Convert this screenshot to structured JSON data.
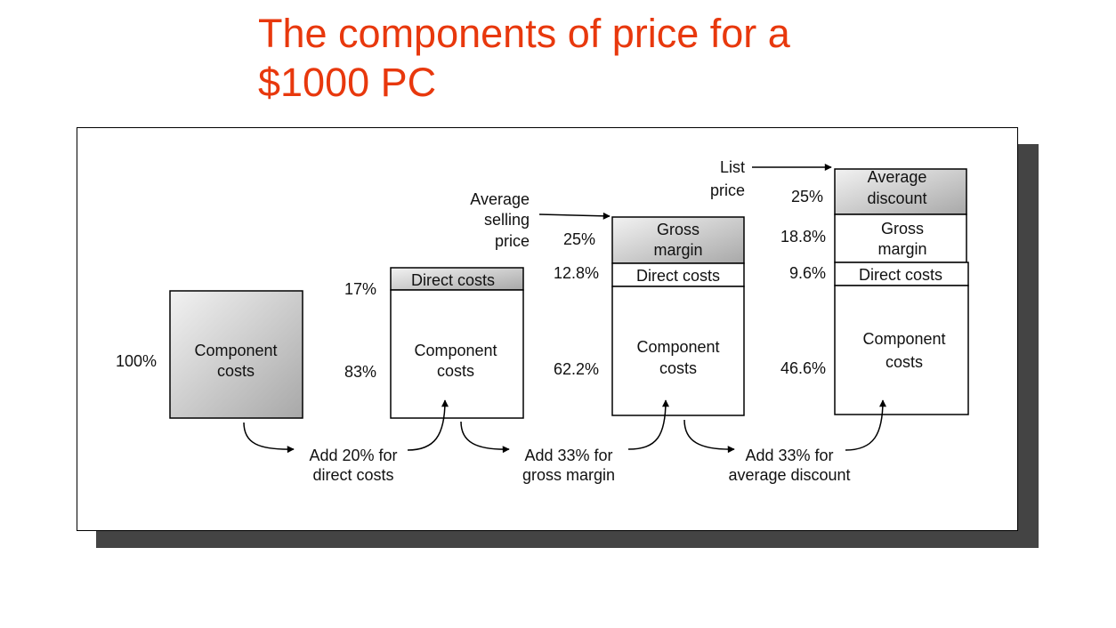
{
  "slide": {
    "title_line1": "The components of price for a",
    "title_line2": "$1000 PC",
    "title_color": "#e8380d"
  },
  "colors": {
    "shaded_fill_light": "#f2f2f2",
    "shaded_fill_dark": "#a8a8a8",
    "stroke": "#000000",
    "shadow": "#444444"
  },
  "diagram": {
    "stage1": {
      "percent": "100%",
      "component_line1": "Component",
      "component_line2": "costs"
    },
    "stage2": {
      "direct_percent": "17%",
      "direct_label": "Direct costs",
      "component_percent": "83%",
      "component_line1": "Component",
      "component_line2": "costs"
    },
    "stage3": {
      "pointer_line1": "Average",
      "pointer_line2": "selling",
      "pointer_line3": "price",
      "margin_percent": "25%",
      "margin_line1": "Gross",
      "margin_line2": "margin",
      "direct_percent": "12.8%",
      "direct_label": "Direct costs",
      "component_percent": "62.2%",
      "component_line1": "Component",
      "component_line2": "costs"
    },
    "stage4": {
      "pointer_line1": "List",
      "pointer_line2": "price",
      "discount_percent": "25%",
      "discount_line1": "Average",
      "discount_line2": "discount",
      "margin_percent": "18.8%",
      "margin_line1": "Gross",
      "margin_line2": "margin",
      "direct_percent": "9.6%",
      "direct_label": "Direct costs",
      "component_percent": "46.6%",
      "component_line1": "Component",
      "component_line2": "costs"
    },
    "transitions": [
      {
        "line1": "Add 20% for",
        "line2": "direct costs"
      },
      {
        "line1": "Add 33% for",
        "line2": "gross margin"
      },
      {
        "line1": "Add 33% for",
        "line2": "average discount"
      }
    ]
  }
}
